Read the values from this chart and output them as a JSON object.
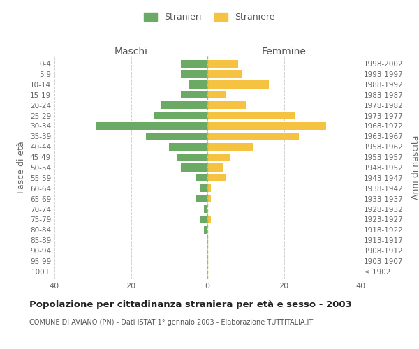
{
  "age_groups": [
    "100+",
    "95-99",
    "90-94",
    "85-89",
    "80-84",
    "75-79",
    "70-74",
    "65-69",
    "60-64",
    "55-59",
    "50-54",
    "45-49",
    "40-44",
    "35-39",
    "30-34",
    "25-29",
    "20-24",
    "15-19",
    "10-14",
    "5-9",
    "0-4"
  ],
  "birth_years": [
    "≤ 1902",
    "1903-1907",
    "1908-1912",
    "1913-1917",
    "1918-1922",
    "1923-1927",
    "1928-1932",
    "1933-1937",
    "1938-1942",
    "1943-1947",
    "1948-1952",
    "1953-1957",
    "1958-1962",
    "1963-1967",
    "1968-1972",
    "1973-1977",
    "1978-1982",
    "1983-1987",
    "1988-1992",
    "1993-1997",
    "1998-2002"
  ],
  "males": [
    0,
    0,
    0,
    0,
    1,
    2,
    1,
    3,
    2,
    3,
    7,
    8,
    10,
    16,
    29,
    14,
    12,
    7,
    5,
    7,
    7
  ],
  "females": [
    0,
    0,
    0,
    0,
    0,
    1,
    0,
    1,
    1,
    5,
    4,
    6,
    12,
    24,
    31,
    23,
    10,
    5,
    16,
    9,
    8
  ],
  "male_color": "#6aaa64",
  "female_color": "#f5c242",
  "title": "Popolazione per cittadinanza straniera per età e sesso - 2003",
  "subtitle": "COMUNE DI AVIANO (PN) - Dati ISTAT 1° gennaio 2003 - Elaborazione TUTTITALIA.IT",
  "left_label": "Maschi",
  "right_label": "Femmine",
  "ylabel_left": "Fasce di età",
  "ylabel_right": "Anni di nascita",
  "legend_males": "Stranieri",
  "legend_females": "Straniere",
  "xlim": 40,
  "background_color": "#ffffff",
  "grid_color": "#d0d0d0"
}
